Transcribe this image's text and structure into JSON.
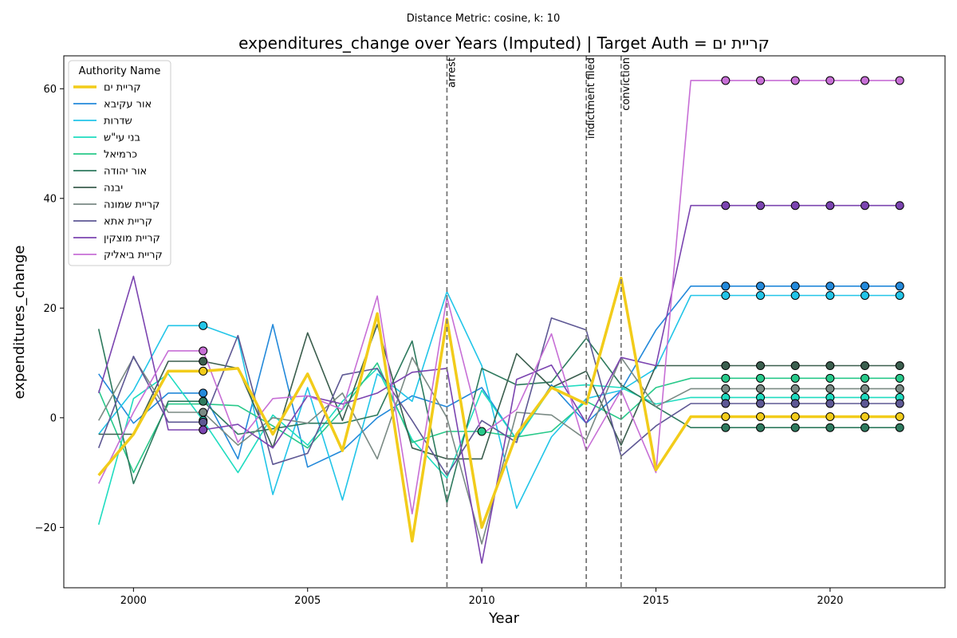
{
  "chart_data": {
    "type": "line",
    "suptitle": "Distance Metric: cosine, k: 10",
    "title": "expenditures_change over Years (Imputed) | Target Auth = קריית ים",
    "xlabel": "Year",
    "ylabel": "expenditures_change",
    "xlim": [
      1998,
      2023.3
    ],
    "ylim": [
      -31,
      66
    ],
    "xticks": [
      2000,
      2005,
      2010,
      2015,
      2020
    ],
    "yticks": [
      -20,
      0,
      20,
      40,
      60
    ],
    "grid": false,
    "legend": {
      "title": "Authority Name",
      "position": "top-left"
    },
    "events": [
      {
        "year": 2009,
        "label": "arrest"
      },
      {
        "year": 2013,
        "label": "indictment filed"
      },
      {
        "year": 2014,
        "label": "conviction"
      }
    ],
    "x": [
      1999,
      2000,
      2001,
      2002,
      2003,
      2004,
      2005,
      2006,
      2007,
      2008,
      2009,
      2010,
      2011,
      2012,
      2013,
      2014,
      2015,
      2016,
      2017,
      2018,
      2019,
      2020,
      2021,
      2022
    ],
    "series": [
      {
        "name": "קריית ים",
        "color": "#f2cc1a",
        "target": true,
        "values": [
          -10.5,
          -3,
          8.5,
          8.5,
          9,
          -3,
          8,
          -6,
          19,
          -22.5,
          18,
          -20,
          -3,
          5.5,
          2.5,
          25.5,
          -9.5,
          0.2,
          0.2,
          0.2,
          0.2,
          0.2,
          0.2,
          0.2
        ],
        "imputed_years": [
          2002,
          2017,
          2018,
          2019,
          2020,
          2021,
          2022
        ]
      },
      {
        "name": "אור עקיבא",
        "color": "#2389da",
        "values": [
          8,
          -1,
          4.5,
          4.5,
          -7.5,
          17,
          -9,
          -6,
          0,
          4,
          2,
          5.5,
          -4,
          6,
          -1,
          5,
          16,
          24,
          24,
          24,
          24,
          24,
          24,
          24
        ],
        "imputed_years": [
          2002,
          2017,
          2018,
          2019,
          2020,
          2021,
          2022
        ]
      },
      {
        "name": "שדרות",
        "color": "#22c5e8",
        "values": [
          -3,
          5,
          16.8,
          16.8,
          14.5,
          -14,
          5.5,
          -15,
          8,
          3,
          23,
          9.5,
          -16.5,
          -3.5,
          3.5,
          5,
          9,
          22.3,
          22.3,
          22.3,
          22.3,
          22.3,
          22.3,
          22.3
        ],
        "imputed_years": [
          2002,
          2017,
          2018,
          2019,
          2020,
          2021,
          2022
        ]
      },
      {
        "name": "בני עי\"ש",
        "color": "#1fdcc0",
        "values": [
          -19.5,
          3.5,
          8,
          -0.5,
          -10,
          0.5,
          -5,
          3,
          9,
          -4,
          -11,
          5,
          -4,
          5.5,
          6,
          5.5,
          2.5,
          3.7,
          3.7,
          3.7,
          3.7,
          3.7,
          3.7,
          3.7
        ],
        "imputed_years": [
          2002,
          2017,
          2018,
          2019,
          2020,
          2021,
          2022
        ]
      },
      {
        "name": "כרמיאל",
        "color": "#28c98a",
        "values": [
          5,
          -10,
          2.5,
          2.5,
          2.2,
          -1.5,
          -5.5,
          1.5,
          10,
          -4.5,
          -2.5,
          -2.5,
          -3.5,
          -2.5,
          3,
          -0.3,
          5.5,
          7.2,
          7.2,
          7.2,
          7.2,
          7.2,
          7.2,
          7.2
        ],
        "imputed_years": [
          2010,
          2017,
          2018,
          2019,
          2020,
          2021,
          2022
        ]
      },
      {
        "name": "אור יהודה",
        "color": "#2e7a5e",
        "values": [
          16.2,
          -12,
          3,
          3,
          -3,
          -2,
          -1,
          -1,
          0.5,
          14,
          -15.5,
          9,
          6,
          6.5,
          14.5,
          6,
          2,
          -1.8,
          -1.8,
          -1.8,
          -1.8,
          -1.8,
          -1.8,
          -1.8
        ],
        "imputed_years": [
          2002,
          2017,
          2018,
          2019,
          2020,
          2021,
          2022
        ]
      },
      {
        "name": "יבנה",
        "color": "#3b5e4e",
        "values": [
          -3,
          -3,
          10.3,
          10.3,
          9,
          -5.5,
          15.5,
          -0.5,
          17,
          -5.5,
          -7.5,
          -7.5,
          11.7,
          5.5,
          8.5,
          -5,
          9.5,
          9.5,
          9.5,
          9.5,
          9.5,
          9.5,
          9.5,
          9.5
        ],
        "imputed_years": [
          2002,
          2017,
          2018,
          2019,
          2020,
          2021,
          2022
        ]
      },
      {
        "name": "קריית שמונה",
        "color": "#7a8a84",
        "values": [
          -0.5,
          11,
          1,
          1,
          -5,
          0,
          -1,
          4.5,
          -7.5,
          11,
          0,
          -23,
          1,
          0.5,
          -4,
          11,
          2,
          5.3,
          5.3,
          5.3,
          5.3,
          5.3,
          5.3,
          5.3
        ],
        "imputed_years": [
          2002,
          2017,
          2018,
          2019,
          2020,
          2021,
          2022
        ]
      },
      {
        "name": "קריית אתא",
        "color": "#5e5894",
        "values": [
          -5.5,
          11.2,
          -0.8,
          -0.8,
          15,
          -8.5,
          -6.5,
          7.8,
          9,
          -0.5,
          -10.5,
          -0.5,
          -4.5,
          18.2,
          16,
          -7,
          -1.5,
          2.6,
          2.6,
          2.6,
          2.6,
          2.6,
          2.6,
          2.6
        ],
        "imputed_years": [
          2002,
          2017,
          2018,
          2019,
          2020,
          2021,
          2022
        ]
      },
      {
        "name": "קריית מוצקין",
        "color": "#7b44b0",
        "values": [
          4.5,
          25.8,
          -2.2,
          -2.2,
          -1.2,
          -5.5,
          4,
          2.5,
          4.5,
          8.3,
          9,
          -26.5,
          7,
          9.6,
          -1,
          11,
          9.5,
          38.7,
          38.7,
          38.7,
          38.7,
          38.7,
          38.7,
          38.7
        ],
        "imputed_years": [
          2002,
          2017,
          2018,
          2019,
          2020,
          2021,
          2022
        ]
      },
      {
        "name": "קריית ביאליק",
        "color": "#c76fd6",
        "values": [
          -12,
          1,
          12.2,
          12.2,
          -4.5,
          3.5,
          4,
          1.5,
          22.2,
          -17.5,
          22,
          -3,
          1.5,
          15.3,
          -6,
          5,
          -10,
          61.5,
          61.5,
          61.5,
          61.5,
          61.5,
          61.5,
          61.5
        ],
        "imputed_years": [
          2002,
          2017,
          2018,
          2019,
          2020,
          2021,
          2022
        ]
      }
    ]
  }
}
